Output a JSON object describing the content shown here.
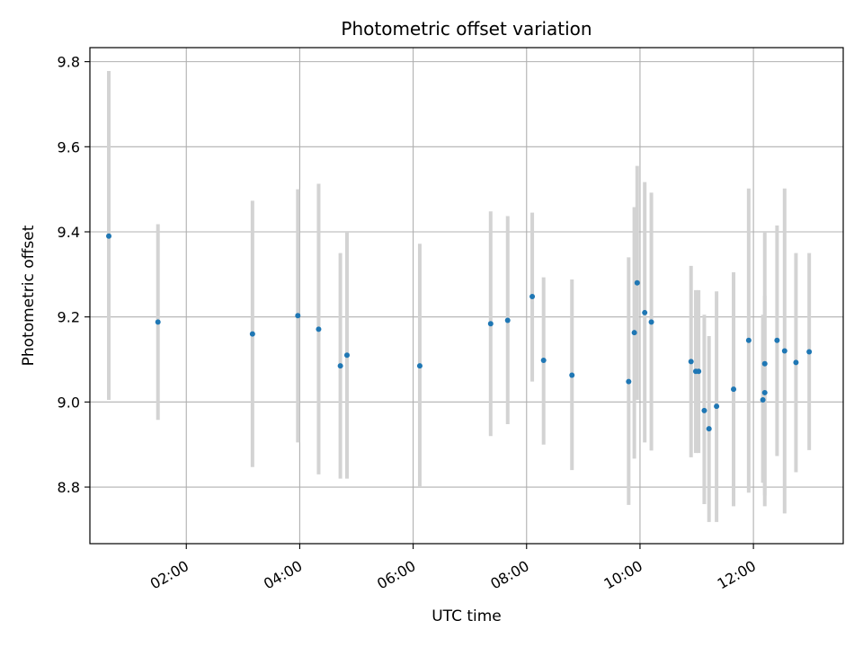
{
  "chart_data": {
    "type": "scatter",
    "title": "Photometric offset variation",
    "xlabel": "UTC time",
    "ylabel": "Photometric offset",
    "xlim": [
      "00:18",
      "13:35"
    ],
    "ylim": [
      8.667,
      9.833
    ],
    "x_ticks": [
      "02:00",
      "04:00",
      "06:00",
      "08:00",
      "10:00",
      "12:00"
    ],
    "y_ticks": [
      "8.8",
      "9.0",
      "9.2",
      "9.4",
      "9.6",
      "9.8"
    ],
    "grid": true,
    "point_color": "#1f77b4",
    "errorbar_color": "#d3d3d3",
    "series": [
      {
        "points": [
          {
            "x": "00:38",
            "y": 9.39,
            "low": 9.005,
            "high": 9.778
          },
          {
            "x": "01:30",
            "y": 9.188,
            "low": 8.958,
            "high": 9.418
          },
          {
            "x": "03:10",
            "y": 9.16,
            "low": 8.847,
            "high": 9.473
          },
          {
            "x": "03:58",
            "y": 9.203,
            "low": 8.905,
            "high": 9.5
          },
          {
            "x": "04:20",
            "y": 9.171,
            "low": 8.83,
            "high": 9.513
          },
          {
            "x": "04:43",
            "y": 9.085,
            "low": 8.82,
            "high": 9.35
          },
          {
            "x": "04:50",
            "y": 9.11,
            "low": 8.82,
            "high": 9.4
          },
          {
            "x": "06:07",
            "y": 9.085,
            "low": 8.8,
            "high": 9.372
          },
          {
            "x": "07:22",
            "y": 9.184,
            "low": 8.92,
            "high": 9.448
          },
          {
            "x": "07:40",
            "y": 9.192,
            "low": 8.948,
            "high": 9.437
          },
          {
            "x": "08:06",
            "y": 9.248,
            "low": 9.048,
            "high": 9.445
          },
          {
            "x": "08:18",
            "y": 9.098,
            "low": 8.9,
            "high": 9.293
          },
          {
            "x": "08:48",
            "y": 9.063,
            "low": 8.84,
            "high": 9.288
          },
          {
            "x": "09:48",
            "y": 9.048,
            "low": 8.758,
            "high": 9.34
          },
          {
            "x": "09:54",
            "y": 9.163,
            "low": 8.867,
            "high": 9.458
          },
          {
            "x": "09:57",
            "y": 9.28,
            "low": 9.005,
            "high": 9.555
          },
          {
            "x": "10:05",
            "y": 9.21,
            "low": 8.905,
            "high": 9.517
          },
          {
            "x": "10:12",
            "y": 9.188,
            "low": 8.886,
            "high": 9.492
          },
          {
            "x": "10:54",
            "y": 9.095,
            "low": 8.87,
            "high": 9.32
          },
          {
            "x": "10:59",
            "y": 9.072,
            "low": 8.88,
            "high": 9.263
          },
          {
            "x": "11:02",
            "y": 9.072,
            "low": 8.88,
            "high": 9.263
          },
          {
            "x": "11:08",
            "y": 8.98,
            "low": 8.76,
            "high": 9.205
          },
          {
            "x": "11:13",
            "y": 8.937,
            "low": 8.718,
            "high": 9.155
          },
          {
            "x": "11:21",
            "y": 8.99,
            "low": 8.718,
            "high": 9.26
          },
          {
            "x": "11:39",
            "y": 9.03,
            "low": 8.755,
            "high": 9.305
          },
          {
            "x": "11:55",
            "y": 9.145,
            "low": 8.787,
            "high": 9.502
          },
          {
            "x": "12:10",
            "y": 9.005,
            "low": 8.81,
            "high": 9.205
          },
          {
            "x": "12:12",
            "y": 9.022,
            "low": 8.755,
            "high": 9.4
          },
          {
            "x": "12:12",
            "y": 9.09,
            "low": 8.78,
            "high": 9.25
          },
          {
            "x": "12:25",
            "y": 9.145,
            "low": 8.873,
            "high": 9.415
          },
          {
            "x": "12:33",
            "y": 9.12,
            "low": 8.738,
            "high": 9.502
          },
          {
            "x": "12:45",
            "y": 9.093,
            "low": 8.835,
            "high": 9.35
          },
          {
            "x": "12:59",
            "y": 9.118,
            "low": 8.887,
            "high": 9.35
          }
        ]
      }
    ]
  }
}
